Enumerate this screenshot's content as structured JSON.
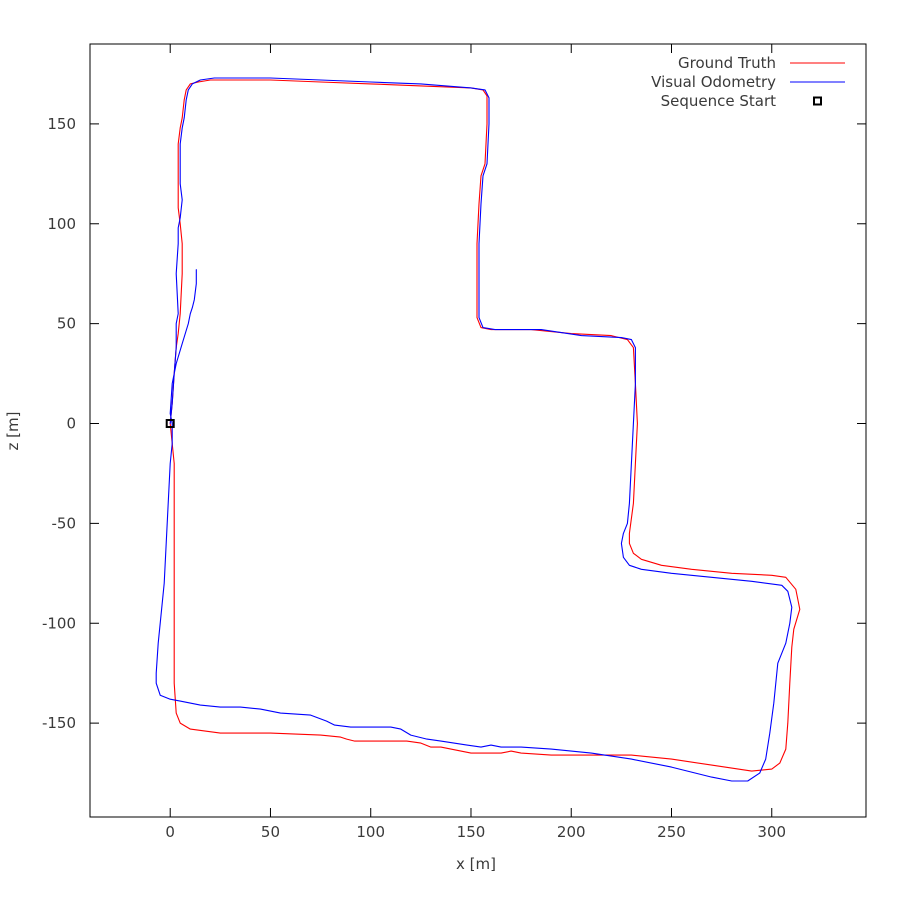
{
  "chart_data": {
    "type": "line",
    "title": "",
    "xlabel": "x [m]",
    "ylabel": "z [m]",
    "xlim": [
      -40,
      347
    ],
    "ylim": [
      -197,
      190
    ],
    "xticks": [
      0,
      50,
      100,
      150,
      200,
      250,
      300
    ],
    "yticks": [
      -150,
      -100,
      -50,
      0,
      50,
      100,
      150
    ],
    "grid": false,
    "legend_position": "top-right",
    "series": [
      {
        "name": "Ground Truth",
        "color": "#ff0000",
        "points": [
          [
            0,
            0
          ],
          [
            1,
            10
          ],
          [
            2,
            25
          ],
          [
            3,
            38
          ],
          [
            4,
            45
          ],
          [
            5,
            55
          ],
          [
            6,
            75
          ],
          [
            6,
            90
          ],
          [
            5,
            100
          ],
          [
            4,
            108
          ],
          [
            4,
            120
          ],
          [
            4,
            140
          ],
          [
            5,
            148
          ],
          [
            6,
            153
          ],
          [
            7,
            162
          ],
          [
            8,
            167
          ],
          [
            10,
            170
          ],
          [
            14,
            171
          ],
          [
            20,
            172
          ],
          [
            30,
            172
          ],
          [
            50,
            172
          ],
          [
            75,
            171
          ],
          [
            100,
            170
          ],
          [
            125,
            169
          ],
          [
            150,
            168
          ],
          [
            156,
            167
          ],
          [
            158,
            164
          ],
          [
            158,
            150
          ],
          [
            157,
            130
          ],
          [
            155,
            124
          ],
          [
            154,
            110
          ],
          [
            153,
            90
          ],
          [
            153,
            70
          ],
          [
            153,
            53
          ],
          [
            155,
            48
          ],
          [
            160,
            47
          ],
          [
            180,
            47
          ],
          [
            200,
            45
          ],
          [
            220,
            44
          ],
          [
            228,
            42
          ],
          [
            231,
            38
          ],
          [
            232,
            20
          ],
          [
            233,
            0
          ],
          [
            232,
            -20
          ],
          [
            231,
            -40
          ],
          [
            229,
            -55
          ],
          [
            229,
            -60
          ],
          [
            231,
            -65
          ],
          [
            235,
            -68
          ],
          [
            245,
            -71
          ],
          [
            260,
            -73
          ],
          [
            280,
            -75
          ],
          [
            300,
            -76
          ],
          [
            307,
            -77
          ],
          [
            312,
            -83
          ],
          [
            314,
            -93
          ],
          [
            311,
            -103
          ],
          [
            310,
            -112
          ],
          [
            309,
            -130
          ],
          [
            308,
            -150
          ],
          [
            307,
            -163
          ],
          [
            304,
            -170
          ],
          [
            300,
            -173
          ],
          [
            290,
            -174
          ],
          [
            270,
            -171
          ],
          [
            250,
            -168
          ],
          [
            230,
            -166
          ],
          [
            210,
            -166
          ],
          [
            190,
            -166
          ],
          [
            175,
            -165
          ],
          [
            170,
            -164
          ],
          [
            165,
            -165
          ],
          [
            150,
            -165
          ],
          [
            135,
            -162
          ],
          [
            130,
            -162
          ],
          [
            125,
            -160
          ],
          [
            118,
            -159
          ],
          [
            110,
            -159
          ],
          [
            100,
            -159
          ],
          [
            92,
            -159
          ],
          [
            88,
            -158
          ],
          [
            85,
            -157
          ],
          [
            75,
            -156
          ],
          [
            50,
            -155
          ],
          [
            25,
            -155
          ],
          [
            10,
            -153
          ],
          [
            5,
            -150
          ],
          [
            3,
            -145
          ],
          [
            2,
            -130
          ],
          [
            2,
            -100
          ],
          [
            2,
            -70
          ],
          [
            2,
            -40
          ],
          [
            2,
            -20
          ],
          [
            1,
            -10
          ],
          [
            0,
            0
          ]
        ]
      },
      {
        "name": "Visual Odometry",
        "color": "#0000ff",
        "points": [
          [
            0,
            0
          ],
          [
            1,
            10
          ],
          [
            2,
            25
          ],
          [
            3,
            38
          ],
          [
            3,
            50
          ],
          [
            4,
            55
          ],
          [
            3,
            75
          ],
          [
            4,
            90
          ],
          [
            4,
            98
          ],
          [
            5,
            103
          ],
          [
            6,
            112
          ],
          [
            5,
            120
          ],
          [
            5,
            140
          ],
          [
            6,
            148
          ],
          [
            7,
            153
          ],
          [
            8,
            162
          ],
          [
            9,
            167
          ],
          [
            11,
            170
          ],
          [
            15,
            172
          ],
          [
            22,
            173
          ],
          [
            35,
            173
          ],
          [
            50,
            173
          ],
          [
            75,
            172
          ],
          [
            100,
            171
          ],
          [
            125,
            170
          ],
          [
            150,
            168
          ],
          [
            157,
            167
          ],
          [
            159,
            163
          ],
          [
            159,
            150
          ],
          [
            158,
            130
          ],
          [
            156,
            124
          ],
          [
            155,
            110
          ],
          [
            154,
            90
          ],
          [
            154,
            70
          ],
          [
            154,
            53
          ],
          [
            156,
            48
          ],
          [
            162,
            47
          ],
          [
            185,
            47
          ],
          [
            205,
            44
          ],
          [
            225,
            43
          ],
          [
            230,
            42
          ],
          [
            232,
            38
          ],
          [
            232,
            20
          ],
          [
            231,
            0
          ],
          [
            230,
            -20
          ],
          [
            229,
            -40
          ],
          [
            228,
            -50
          ],
          [
            226,
            -55
          ],
          [
            225,
            -60
          ],
          [
            226,
            -67
          ],
          [
            229,
            -71
          ],
          [
            235,
            -73
          ],
          [
            250,
            -75
          ],
          [
            270,
            -77
          ],
          [
            290,
            -79
          ],
          [
            305,
            -81
          ],
          [
            308,
            -84
          ],
          [
            310,
            -92
          ],
          [
            309,
            -100
          ],
          [
            307,
            -110
          ],
          [
            305,
            -115
          ],
          [
            303,
            -120
          ],
          [
            301,
            -140
          ],
          [
            299,
            -155
          ],
          [
            297,
            -168
          ],
          [
            294,
            -175
          ],
          [
            288,
            -179
          ],
          [
            280,
            -179
          ],
          [
            270,
            -177
          ],
          [
            250,
            -172
          ],
          [
            230,
            -168
          ],
          [
            210,
            -165
          ],
          [
            190,
            -163
          ],
          [
            175,
            -162
          ],
          [
            165,
            -162
          ],
          [
            160,
            -161
          ],
          [
            155,
            -162
          ],
          [
            148,
            -161
          ],
          [
            135,
            -159
          ],
          [
            128,
            -158
          ],
          [
            120,
            -156
          ],
          [
            115,
            -153
          ],
          [
            110,
            -152
          ],
          [
            100,
            -152
          ],
          [
            90,
            -152
          ],
          [
            82,
            -151
          ],
          [
            78,
            -149
          ],
          [
            70,
            -146
          ],
          [
            55,
            -145
          ],
          [
            45,
            -143
          ],
          [
            35,
            -142
          ],
          [
            25,
            -142
          ],
          [
            15,
            -141
          ],
          [
            5,
            -139
          ],
          [
            0,
            -138
          ],
          [
            -5,
            -136
          ],
          [
            -7,
            -130
          ],
          [
            -7,
            -125
          ],
          [
            -6,
            -110
          ],
          [
            -5,
            -100
          ],
          [
            -4,
            -90
          ],
          [
            -3,
            -80
          ],
          [
            -2,
            -60
          ],
          [
            -1,
            -40
          ],
          [
            0,
            -20
          ],
          [
            1,
            -10
          ],
          [
            1,
            -4
          ],
          [
            1,
            0
          ],
          [
            0,
            5
          ],
          [
            1,
            20
          ],
          [
            3,
            30
          ],
          [
            6,
            40
          ],
          [
            9,
            50
          ],
          [
            10,
            55
          ],
          [
            11,
            58
          ],
          [
            12,
            62
          ],
          [
            13,
            70
          ],
          [
            13,
            77
          ]
        ]
      }
    ],
    "markers": [
      {
        "name": "Sequence Start",
        "x": 0,
        "y": 0,
        "shape": "square",
        "color": "#000000"
      }
    ]
  }
}
